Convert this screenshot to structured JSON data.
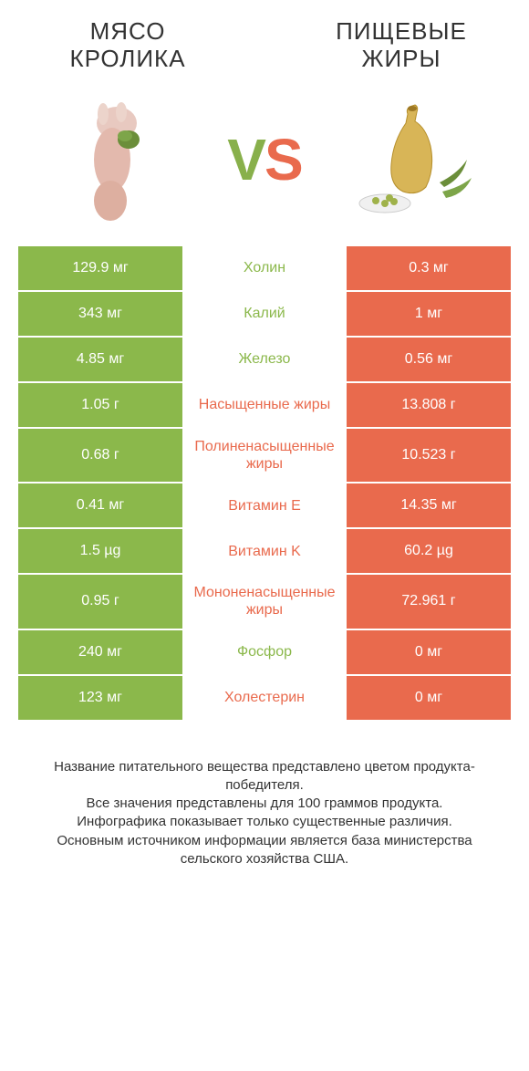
{
  "header": {
    "left_title": "МЯСО КРОЛИКА",
    "right_title": "ПИЩЕВЫЕ ЖИРЫ",
    "vs_v": "V",
    "vs_s": "S"
  },
  "colors": {
    "green": "#8bb84b",
    "orange": "#e96a4d",
    "text": "#333333",
    "bg": "#ffffff"
  },
  "table": {
    "rows": [
      {
        "left": "129.9 мг",
        "mid": "Холин",
        "right": "0.3 мг",
        "winner": "left"
      },
      {
        "left": "343 мг",
        "mid": "Калий",
        "right": "1 мг",
        "winner": "left"
      },
      {
        "left": "4.85 мг",
        "mid": "Железо",
        "right": "0.56 мг",
        "winner": "left"
      },
      {
        "left": "1.05 г",
        "mid": "Насыщенные жиры",
        "right": "13.808 г",
        "winner": "right"
      },
      {
        "left": "0.68 г",
        "mid": "Полиненасыщенные жиры",
        "right": "10.523 г",
        "winner": "right"
      },
      {
        "left": "0.41 мг",
        "mid": "Витамин E",
        "right": "14.35 мг",
        "winner": "right"
      },
      {
        "left": "1.5 µg",
        "mid": "Витамин K",
        "right": "60.2 µg",
        "winner": "right"
      },
      {
        "left": "0.95 г",
        "mid": "Мононенасыщенные жиры",
        "right": "72.961 г",
        "winner": "right"
      },
      {
        "left": "240 мг",
        "mid": "Фосфор",
        "right": "0 мг",
        "winner": "left"
      },
      {
        "left": "123 мг",
        "mid": "Холестерин",
        "right": "0 мг",
        "winner": "right"
      }
    ]
  },
  "footer": {
    "line1": "Название питательного вещества представлено цветом продукта-победителя.",
    "line2": "Все значения представлены для 100 граммов продукта.",
    "line3": "Инфографика показывает только существенные различия.",
    "line4": "Основным источником информации является база министерства сельского хозяйства США."
  }
}
